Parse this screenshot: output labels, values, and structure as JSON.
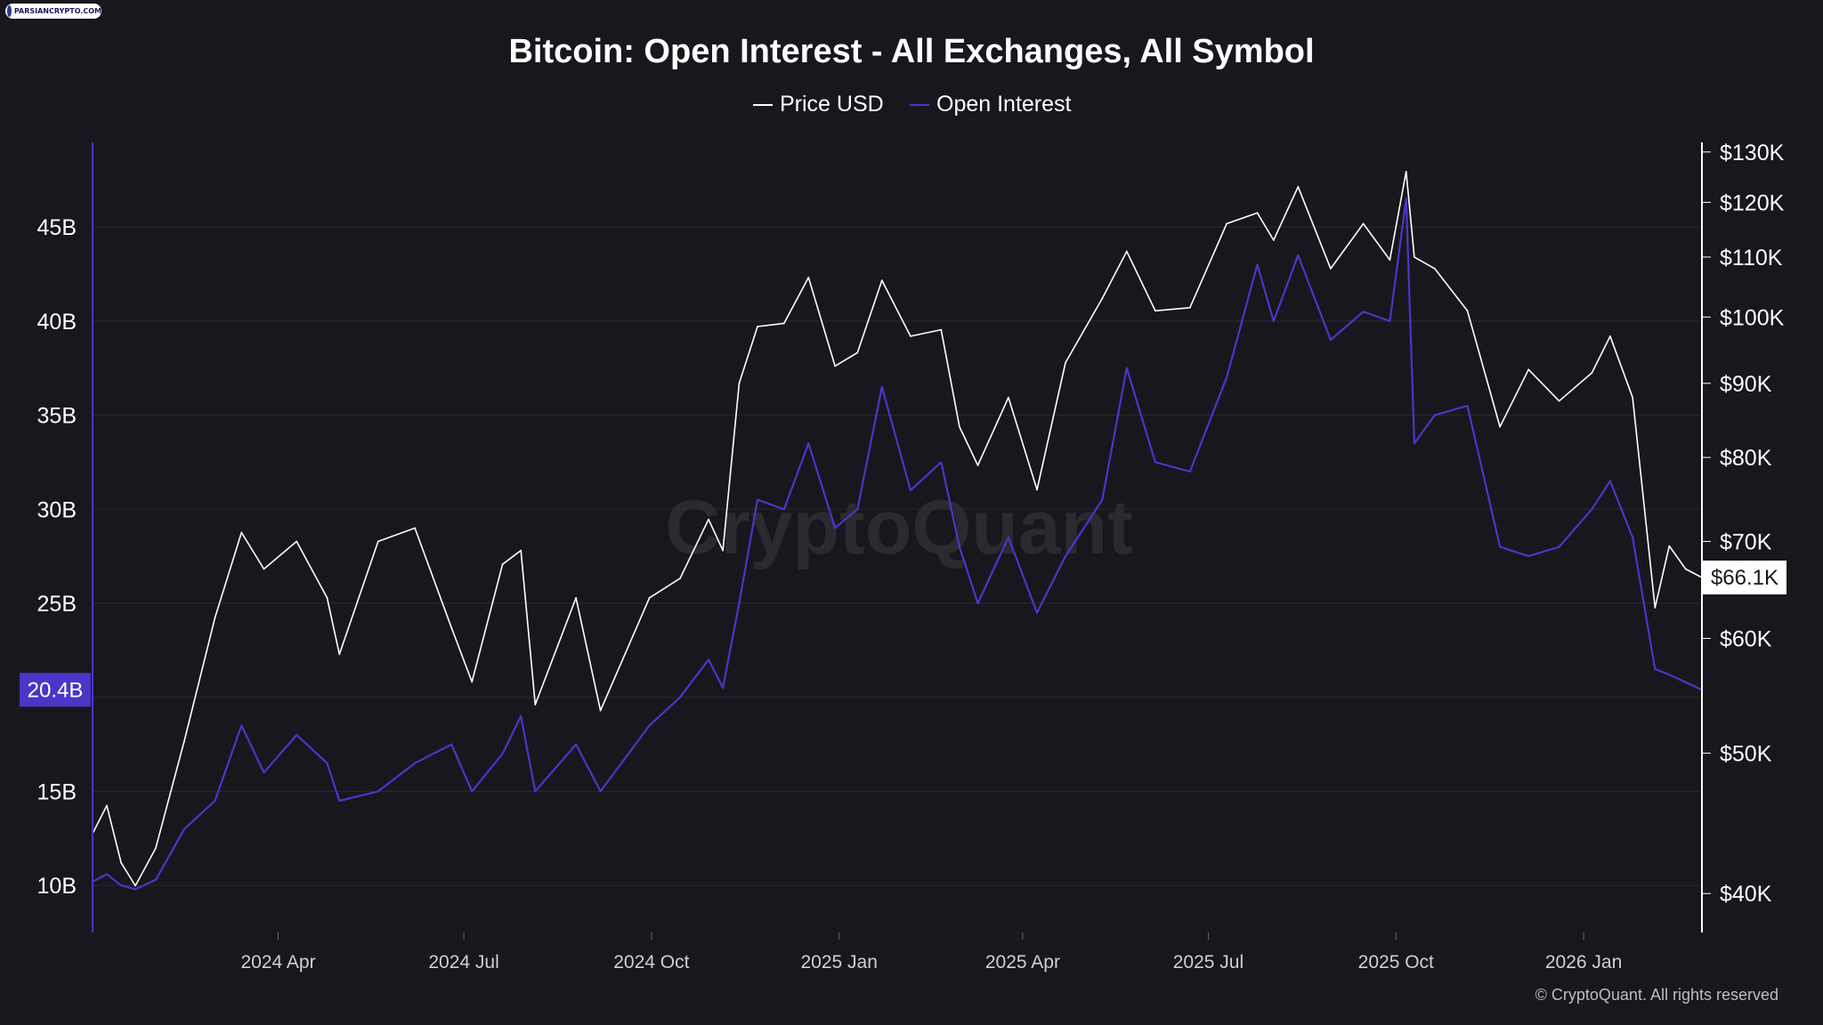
{
  "watermark_logo": "PARSIANCRYPTO.COM",
  "chart_data": {
    "type": "line",
    "title": "Bitcoin: Open Interest - All Exchanges, All Symbol",
    "legend": {
      "placement": "top-center",
      "entries": [
        {
          "name": "Price USD",
          "color": "#ffffff"
        },
        {
          "name": "Open Interest",
          "color": "#4a36c8"
        }
      ]
    },
    "x_axis": {
      "tick_labels": [
        "2024 Apr",
        "2024 Jul",
        "2024 Oct",
        "2025 Jan",
        "2025 Apr",
        "2025 Jul",
        "2025 Oct",
        "2026 Jan"
      ],
      "range": [
        "2024-01-01",
        "2026-02-28"
      ]
    },
    "y_axis_left": {
      "label": "",
      "tick_labels": [
        "10B",
        "15B",
        "20B",
        "25B",
        "30B",
        "35B",
        "40B",
        "45B"
      ],
      "tick_values": [
        10,
        15,
        20,
        25,
        30,
        35,
        40,
        45
      ],
      "range": [
        7.5,
        49.5
      ],
      "unit": "B",
      "current_value_label": "20.4B",
      "current_value": 20.4,
      "color": "#4a36c8"
    },
    "y_axis_right": {
      "label": "",
      "scale": "log",
      "tick_labels": [
        "$40K",
        "$50K",
        "$60K",
        "$70K",
        "$80K",
        "$90K",
        "$100K",
        "$110K",
        "$120K",
        "$130K"
      ],
      "tick_values": [
        40000,
        50000,
        60000,
        70000,
        80000,
        90000,
        100000,
        110000,
        120000,
        130000
      ],
      "range": [
        37600,
        132000
      ],
      "current_value_label": "$66.1K",
      "current_value": 66100
    },
    "grid": true,
    "watermark": "CryptoQuant",
    "copyright": "© CryptoQuant. All rights reserved",
    "series": [
      {
        "name": "Price USD",
        "color": "#ffffff",
        "points": [
          [
            "2024-01-01",
            44000
          ],
          [
            "2024-01-08",
            46000
          ],
          [
            "2024-01-15",
            42000
          ],
          [
            "2024-01-22",
            40500
          ],
          [
            "2024-02-01",
            43000
          ],
          [
            "2024-02-15",
            51000
          ],
          [
            "2024-03-01",
            62000
          ],
          [
            "2024-03-14",
            71000
          ],
          [
            "2024-03-25",
            67000
          ],
          [
            "2024-04-10",
            70000
          ],
          [
            "2024-04-25",
            64000
          ],
          [
            "2024-05-01",
            58500
          ],
          [
            "2024-05-20",
            70000
          ],
          [
            "2024-06-07",
            71500
          ],
          [
            "2024-06-25",
            61000
          ],
          [
            "2024-07-05",
            56000
          ],
          [
            "2024-07-20",
            67500
          ],
          [
            "2024-07-29",
            69000
          ],
          [
            "2024-08-05",
            54000
          ],
          [
            "2024-08-25",
            64000
          ],
          [
            "2024-09-06",
            53500
          ],
          [
            "2024-09-30",
            64000
          ],
          [
            "2024-10-15",
            66000
          ],
          [
            "2024-10-29",
            72500
          ],
          [
            "2024-11-05",
            69000
          ],
          [
            "2024-11-13",
            90000
          ],
          [
            "2024-11-22",
            98500
          ],
          [
            "2024-12-05",
            99000
          ],
          [
            "2024-12-17",
            106500
          ],
          [
            "2024-12-30",
            92500
          ],
          [
            "2025-01-10",
            94500
          ],
          [
            "2025-01-22",
            106000
          ],
          [
            "2025-02-05",
            97000
          ],
          [
            "2025-02-20",
            98000
          ],
          [
            "2025-03-01",
            84000
          ],
          [
            "2025-03-10",
            79000
          ],
          [
            "2025-03-25",
            88000
          ],
          [
            "2025-04-08",
            76000
          ],
          [
            "2025-04-22",
            93000
          ],
          [
            "2025-05-10",
            103000
          ],
          [
            "2025-05-22",
            111000
          ],
          [
            "2025-06-05",
            101000
          ],
          [
            "2025-06-22",
            101500
          ],
          [
            "2025-07-10",
            116000
          ],
          [
            "2025-07-25",
            118000
          ],
          [
            "2025-08-02",
            113000
          ],
          [
            "2025-08-14",
            123000
          ],
          [
            "2025-08-30",
            108000
          ],
          [
            "2025-09-15",
            116000
          ],
          [
            "2025-09-28",
            109500
          ],
          [
            "2025-10-06",
            126000
          ],
          [
            "2025-10-10",
            110000
          ],
          [
            "2025-10-20",
            108000
          ],
          [
            "2025-11-05",
            101000
          ],
          [
            "2025-11-21",
            84000
          ],
          [
            "2025-12-05",
            92000
          ],
          [
            "2025-12-20",
            87500
          ],
          [
            "2026-01-05",
            91500
          ],
          [
            "2026-01-14",
            97000
          ],
          [
            "2026-01-25",
            88000
          ],
          [
            "2026-02-05",
            63000
          ],
          [
            "2026-02-12",
            69500
          ],
          [
            "2026-02-20",
            67000
          ],
          [
            "2026-02-28",
            66100
          ]
        ]
      },
      {
        "name": "Open Interest",
        "color": "#4a36c8",
        "points": [
          [
            "2024-01-01",
            10.2
          ],
          [
            "2024-01-08",
            10.6
          ],
          [
            "2024-01-15",
            10.0
          ],
          [
            "2024-01-22",
            9.8
          ],
          [
            "2024-02-01",
            10.3
          ],
          [
            "2024-02-15",
            13.0
          ],
          [
            "2024-03-01",
            14.5
          ],
          [
            "2024-03-14",
            18.5
          ],
          [
            "2024-03-25",
            16.0
          ],
          [
            "2024-04-10",
            18.0
          ],
          [
            "2024-04-25",
            16.5
          ],
          [
            "2024-05-01",
            14.5
          ],
          [
            "2024-05-20",
            15.0
          ],
          [
            "2024-06-07",
            16.5
          ],
          [
            "2024-06-25",
            17.5
          ],
          [
            "2024-07-05",
            15.0
          ],
          [
            "2024-07-20",
            17.0
          ],
          [
            "2024-07-29",
            19.0
          ],
          [
            "2024-08-05",
            15.0
          ],
          [
            "2024-08-25",
            17.5
          ],
          [
            "2024-09-06",
            15.0
          ],
          [
            "2024-09-30",
            18.5
          ],
          [
            "2024-10-15",
            20.0
          ],
          [
            "2024-10-29",
            22.0
          ],
          [
            "2024-11-05",
            20.5
          ],
          [
            "2024-11-13",
            25.0
          ],
          [
            "2024-11-22",
            30.5
          ],
          [
            "2024-12-05",
            30.0
          ],
          [
            "2024-12-17",
            33.5
          ],
          [
            "2024-12-30",
            29.0
          ],
          [
            "2025-01-10",
            30.0
          ],
          [
            "2025-01-22",
            36.5
          ],
          [
            "2025-02-05",
            31.0
          ],
          [
            "2025-02-20",
            32.5
          ],
          [
            "2025-03-01",
            28.0
          ],
          [
            "2025-03-10",
            25.0
          ],
          [
            "2025-03-25",
            28.5
          ],
          [
            "2025-04-08",
            24.5
          ],
          [
            "2025-04-22",
            27.5
          ],
          [
            "2025-05-10",
            30.5
          ],
          [
            "2025-05-22",
            37.5
          ],
          [
            "2025-06-05",
            32.5
          ],
          [
            "2025-06-22",
            32.0
          ],
          [
            "2025-07-10",
            37.0
          ],
          [
            "2025-07-25",
            43.0
          ],
          [
            "2025-08-02",
            40.0
          ],
          [
            "2025-08-14",
            43.5
          ],
          [
            "2025-08-30",
            39.0
          ],
          [
            "2025-09-15",
            40.5
          ],
          [
            "2025-09-28",
            40.0
          ],
          [
            "2025-10-06",
            46.5
          ],
          [
            "2025-10-10",
            33.5
          ],
          [
            "2025-10-20",
            35.0
          ],
          [
            "2025-11-05",
            35.5
          ],
          [
            "2025-11-21",
            28.0
          ],
          [
            "2025-12-05",
            27.5
          ],
          [
            "2025-12-20",
            28.0
          ],
          [
            "2026-01-05",
            30.0
          ],
          [
            "2026-01-14",
            31.5
          ],
          [
            "2026-01-25",
            28.5
          ],
          [
            "2026-02-05",
            21.5
          ],
          [
            "2026-02-12",
            21.2
          ],
          [
            "2026-02-20",
            20.8
          ],
          [
            "2026-02-28",
            20.4
          ]
        ]
      }
    ]
  }
}
